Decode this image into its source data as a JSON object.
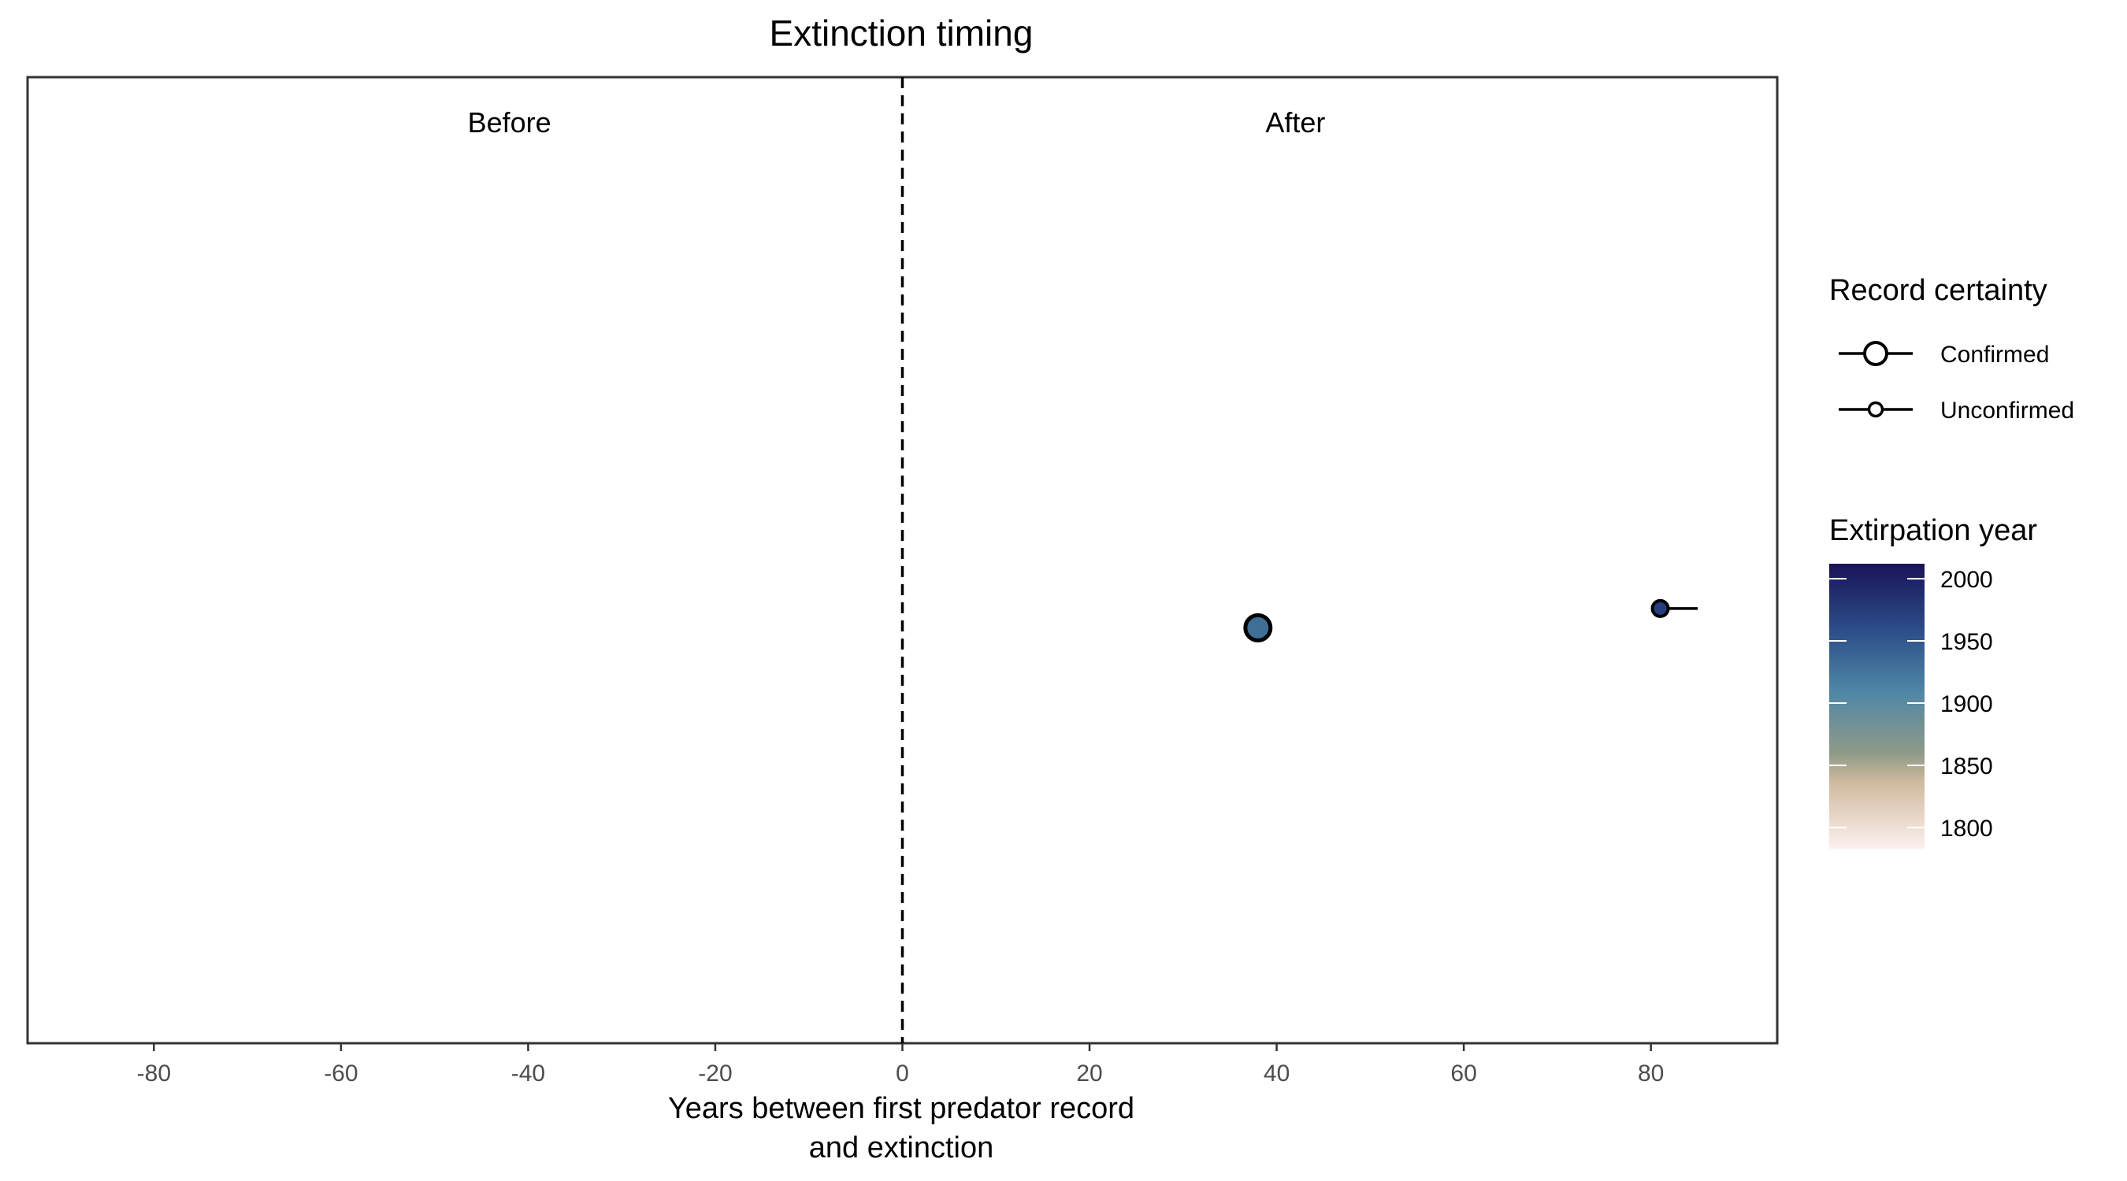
{
  "chart_data": {
    "type": "scatter",
    "title": "Extinction timing",
    "xlabel_lines": [
      "Years between first predator record",
      "and extinction"
    ],
    "ylabel": "",
    "xlim": [
      -93.5,
      93.5
    ],
    "x_ticks": [
      -80,
      -60,
      -40,
      -20,
      0,
      20,
      40,
      60,
      80
    ],
    "vline": 0,
    "regions": [
      {
        "label": "Before",
        "x": -42
      },
      {
        "label": "After",
        "x": 42
      }
    ],
    "points": [
      {
        "x": 38,
        "y": 0.43,
        "certainty": "Confirmed",
        "extirpation_year": 1930,
        "color": "#3f6e96"
      },
      {
        "x": 81,
        "y": 0.45,
        "x_end": 85,
        "certainty": "Unconfirmed",
        "extirpation_year": 1975,
        "color": "#263f7c"
      }
    ],
    "legend_certainty": {
      "title": "Record certainty",
      "items": [
        {
          "label": "Confirmed",
          "size": "large"
        },
        {
          "label": "Unconfirmed",
          "size": "small"
        }
      ]
    },
    "legend_year": {
      "title": "Extirpation year",
      "ticks": [
        2000,
        1950,
        1900,
        1850,
        1800
      ],
      "range": [
        1783,
        2012
      ],
      "stops": [
        {
          "year": 2012,
          "color": "#1a1458"
        },
        {
          "year": 1960,
          "color": "#2c4b88"
        },
        {
          "year": 1910,
          "color": "#4e86a6"
        },
        {
          "year": 1860,
          "color": "#8f9a88"
        },
        {
          "year": 1835,
          "color": "#d2bca0"
        },
        {
          "year": 1783,
          "color": "#fcf0ef"
        }
      ]
    },
    "grid": false,
    "legend_position": "right"
  }
}
